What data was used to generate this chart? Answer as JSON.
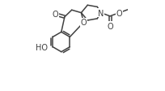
{
  "bg_color": "#ffffff",
  "line_color": "#404040",
  "line_width": 1.1,
  "font_size": 7.0,
  "figsize": [
    2.04,
    1.13
  ],
  "dpi": 100,
  "xlim": [
    0.0,
    1.0
  ],
  "ylim": [
    0.0,
    1.0
  ]
}
